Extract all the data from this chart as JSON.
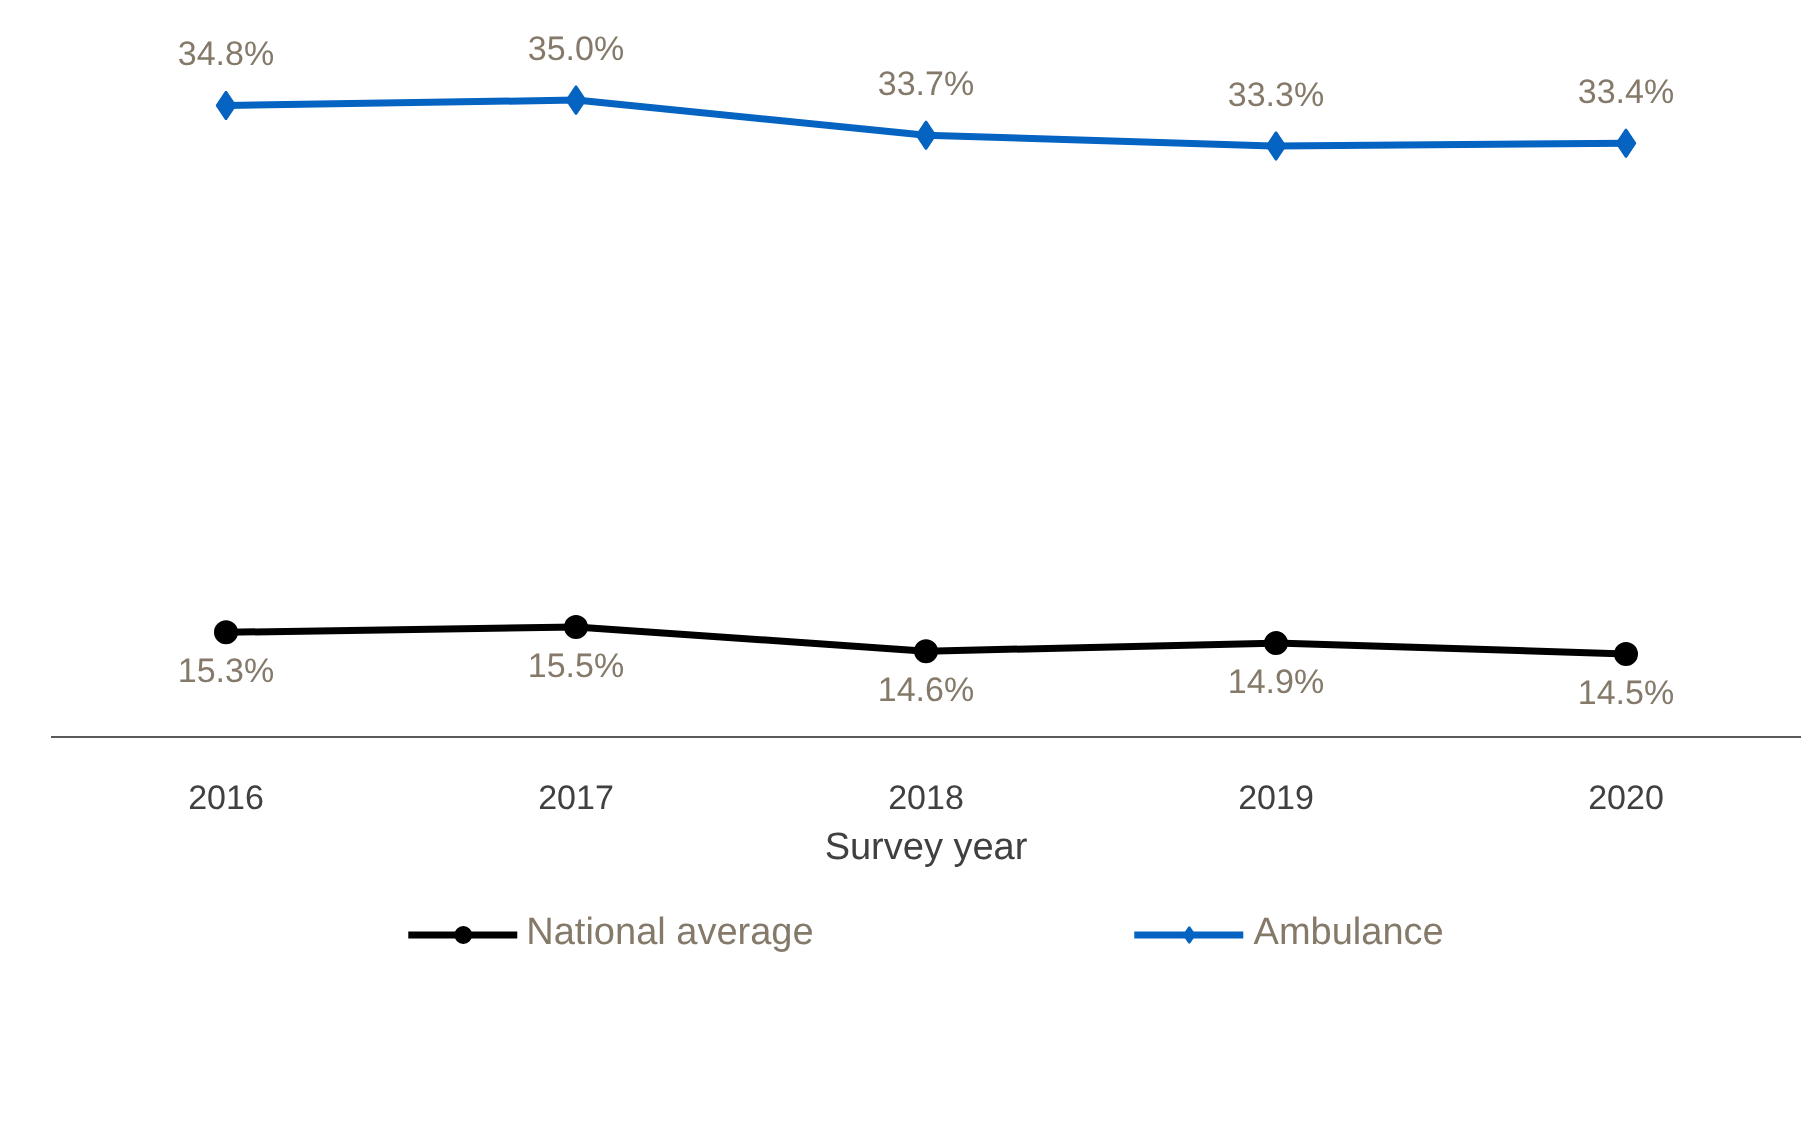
{
  "chart_data": {
    "type": "line",
    "xlabel": "Survey year",
    "categories": [
      "2016",
      "2017",
      "2018",
      "2019",
      "2020"
    ],
    "series": [
      {
        "name": "National average",
        "color": "#000000",
        "marker": "circle",
        "values": [
          15.3,
          15.5,
          14.6,
          14.9,
          14.5
        ],
        "value_labels": [
          "15.3%",
          "15.5%",
          "14.6%",
          "14.9%",
          "14.5%"
        ]
      },
      {
        "name": "Ambulance",
        "color": "#0563c1",
        "marker": "diamond",
        "values": [
          34.8,
          35.0,
          33.7,
          33.3,
          33.4
        ],
        "value_labels": [
          "34.8%",
          "35.0%",
          "33.7%",
          "33.3%",
          "33.4%"
        ]
      }
    ],
    "tick_labels": "x",
    "legend": "bottom",
    "line_style": "solid"
  }
}
